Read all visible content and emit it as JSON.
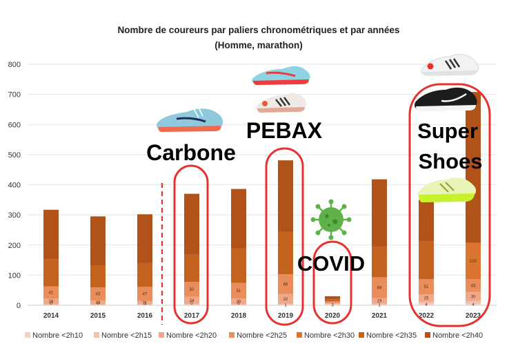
{
  "chart_data": {
    "type": "bar",
    "stacked": true,
    "title": "Nombre de coureurs par paliers chronométriques et par années",
    "subtitle": "(Homme, marathon)",
    "categories": [
      "2014",
      "2015",
      "2016",
      "2017",
      "2018",
      "2019",
      "2020",
      "2021",
      "2022",
      "2023"
    ],
    "ylim": [
      0,
      800
    ],
    "yticks": [
      0,
      100,
      200,
      300,
      400,
      500,
      600,
      700,
      800
    ],
    "grid": true,
    "legend_position": "bottom",
    "series": [
      {
        "name": "Nombre <2h10",
        "color": "#f6cfc3",
        "values": [
          0,
          0,
          0,
          0,
          0,
          1,
          3,
          1,
          4,
          4
        ],
        "labels": [
          "0",
          "0",
          "0",
          "0",
          "0",
          "1",
          "3",
          "1",
          "4",
          "4"
        ]
      },
      {
        "name": "Nombre <2h15",
        "color": "#f4bfae",
        "values": [
          3,
          3,
          3,
          4,
          3,
          4,
          2,
          4,
          7,
          10
        ],
        "labels": [
          "",
          "",
          "",
          "",
          "",
          "",
          "",
          "",
          "",
          ""
        ]
      },
      {
        "name": "Nombre <2h20",
        "color": "#f0a988",
        "values": [
          19,
          13,
          11,
          24,
          20,
          32,
          3,
          19,
          25,
          30
        ],
        "labels": [
          "19",
          "13",
          "11",
          "24",
          "20",
          "32",
          "",
          "19",
          "25",
          "30"
        ]
      },
      {
        "name": "Nombre <2h25",
        "color": "#e98d5c",
        "values": [
          41,
          43,
          47,
          50,
          51,
          66,
          5,
          69,
          51,
          43
        ],
        "labels": [
          "41",
          "43",
          "47",
          "50",
          "51",
          "66",
          "",
          "69",
          "51",
          "43"
        ]
      },
      {
        "name": "Nombre <2h30",
        "color": "#d9752f",
        "values": [
          0,
          0,
          0,
          0,
          0,
          0,
          0,
          0,
          0,
          120
        ],
        "labels": [
          "",
          "",
          "",
          "",
          "",
          "",
          "",
          "",
          "",
          "120"
        ]
      },
      {
        "name": "Nombre <2h35",
        "color": "#c4621f",
        "values": [
          90,
          74,
          79,
          90,
          115,
          141,
          7,
          100,
          126,
          0
        ],
        "labels": [
          "",
          "",
          "",
          "",
          "",
          "",
          "",
          "",
          "",
          ""
        ]
      },
      {
        "name": "Nombre <2h40",
        "color": "#b05219",
        "values": [
          164,
          162,
          162,
          202,
          197,
          237,
          10,
          225,
          137,
          501
        ],
        "labels": [
          "",
          "",
          "",
          "",
          "",
          "",
          "",
          "",
          "",
          ""
        ]
      }
    ],
    "annotations": [
      {
        "text": "Carbone",
        "category": "2017"
      },
      {
        "text": "PEBAX",
        "category": "2019"
      },
      {
        "text": "COVID",
        "category": "2020"
      },
      {
        "text": "Super",
        "category": "2023"
      },
      {
        "text": "Shoes",
        "category": "2023"
      }
    ]
  },
  "colors": {
    "highlight_ellipse": "#e8312f",
    "divider": "#e8312f",
    "virus": "#5fb24a"
  }
}
